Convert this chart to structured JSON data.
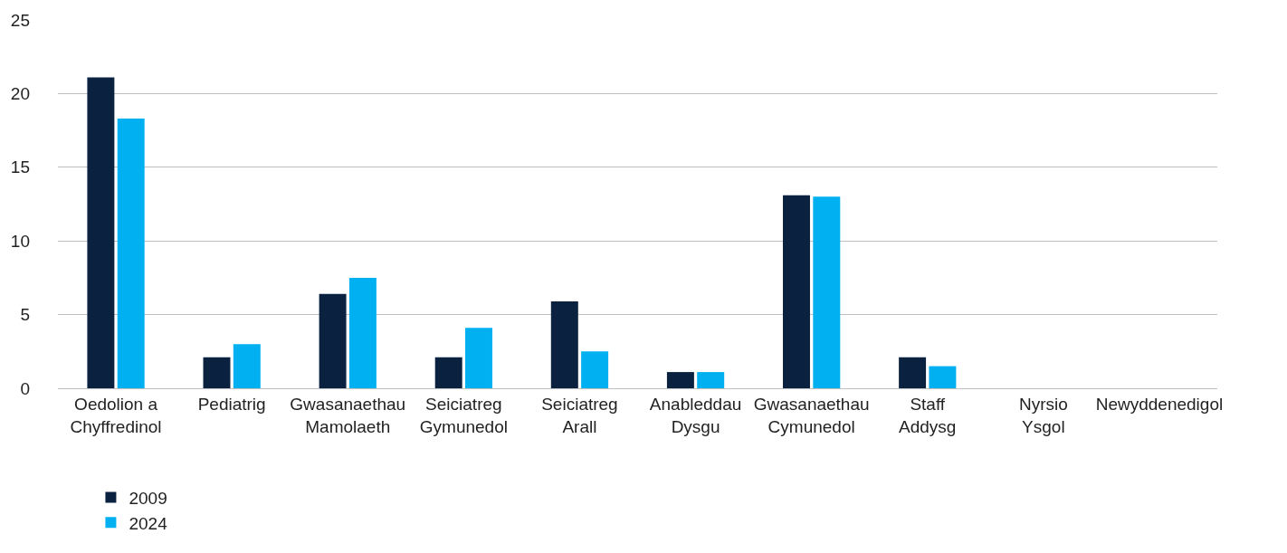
{
  "chart_data": {
    "type": "bar",
    "categories": [
      "Oedolion a\nChyffredinol",
      "Pediatrig",
      "Gwasanaethau\nMamolaeth",
      "Seiciatreg\nGymunedol",
      "Seiciatreg\nArall",
      "Anableddau\nDysgu",
      "Gwasanaethau\nCymunedol",
      "Staff\nAddysg",
      "Nyrsio\nYsgol",
      "Newyddenedigol"
    ],
    "series": [
      {
        "name": "2009",
        "color": "#0a2240",
        "values": [
          21.1,
          2.1,
          6.4,
          2.1,
          5.9,
          1.1,
          13.1,
          2.1,
          0,
          0
        ]
      },
      {
        "name": "2024",
        "color": "#00b0f0",
        "values": [
          18.3,
          3.0,
          7.5,
          4.1,
          2.5,
          1.1,
          13.0,
          1.5,
          0,
          0
        ]
      }
    ],
    "ylim": [
      0,
      25
    ],
    "yticks": [
      0,
      5,
      10,
      15,
      20,
      25
    ],
    "grid": "y",
    "legend": "bottom left"
  }
}
